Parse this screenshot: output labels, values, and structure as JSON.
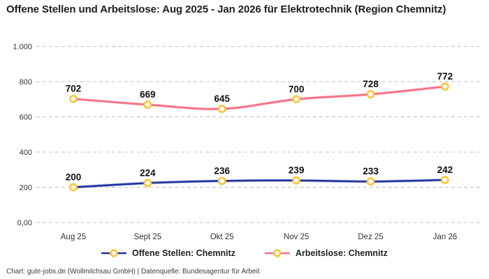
{
  "title": "Offene Stellen und Arbeitslose: Aug 2025 - Jan 2026 für Elektrotechnik (Region Chemnitz)",
  "footer": "Chart: gute-jobs.de (Wollmilchsau GmbH) | Datenquelle: Bundesagentur für Arbeit",
  "colors": {
    "offene_stellen_line": "#20339b",
    "arbeitslose_line": "#f76e85",
    "marker_stroke": "#ffc335",
    "marker_fill": "#ffffff",
    "gridline": "#c9c9c9",
    "tick_text": "#333333",
    "value_label": "#111111"
  },
  "chart_data": {
    "type": "line",
    "title": "Offene Stellen und Arbeitslose: Aug 2025 - Jan 2026 für Elektrotechnik (Region Chemnitz)",
    "categories": [
      "Aug 25",
      "Sept 25",
      "Okt 25",
      "Nov 25",
      "Dez 25",
      "Jan 26"
    ],
    "series": [
      {
        "name": "Offene Stellen: Chemnitz",
        "color": "#20339b",
        "glow": "#8b96e0",
        "values": [
          200,
          224,
          236,
          239,
          233,
          242
        ]
      },
      {
        "name": "Arbeitslose: Chemnitz",
        "color": "#f76e85",
        "glow": "#fcaab8",
        "values": [
          702,
          669,
          645,
          700,
          728,
          772
        ]
      }
    ],
    "y_ticks": [
      {
        "value": 0,
        "label": "0,00"
      },
      {
        "value": 200,
        "label": "200"
      },
      {
        "value": 400,
        "label": "400"
      },
      {
        "value": 600,
        "label": "600"
      },
      {
        "value": 800,
        "label": "800"
      },
      {
        "value": 1000,
        "label": "1.000"
      }
    ],
    "ylim": [
      0,
      1000
    ],
    "grid": "dashed-horizontal",
    "legend_position": "bottom",
    "marker": {
      "fill": "#ffffff",
      "stroke": "#ffc335"
    }
  }
}
